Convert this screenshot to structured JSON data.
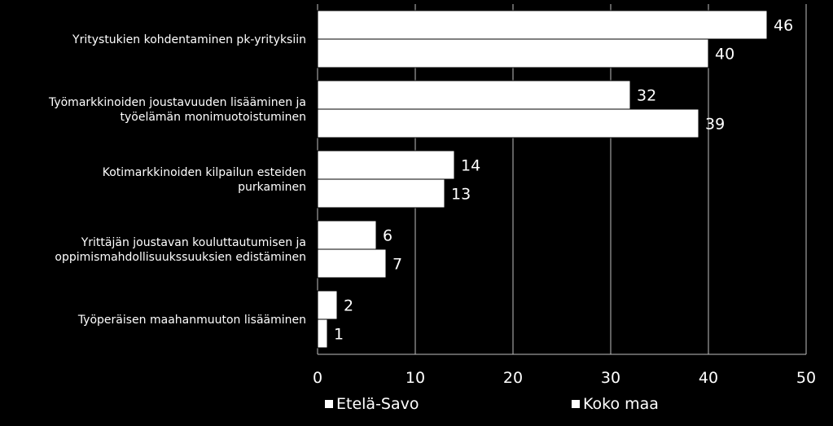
{
  "chart_data": {
    "type": "bar",
    "orientation": "horizontal",
    "categories": [
      [
        "Yritystukien kohdentaminen pk-yrityksiin"
      ],
      [
        "Työmarkkinoiden joustavuuden lisääminen ja",
        "työelämän monimuotoistuminen"
      ],
      [
        "Kotimarkkinoiden kilpailun esteiden",
        "purkaminen"
      ],
      [
        "Yrittäjän joustavan kouluttautumisen ja",
        "oppimismahdollisuukssuuksien edistäminen"
      ],
      [
        "Työperäisen maahanmuuton lisääminen"
      ]
    ],
    "series": [
      {
        "name": "Etelä-Savo",
        "values": [
          46,
          32,
          14,
          6,
          2
        ]
      },
      {
        "name": "Koko maa",
        "values": [
          40,
          39,
          13,
          7,
          1
        ]
      }
    ],
    "xlim": [
      0,
      50
    ],
    "xticks": [
      0,
      10,
      20,
      30,
      40,
      50
    ],
    "grid": true,
    "legend_position": "bottom",
    "colors": {
      "background": "#000000",
      "bar": "#ffffff",
      "bar_stroke": "#000000",
      "grid": "#bfbfbf",
      "text": "#ffffff"
    }
  }
}
